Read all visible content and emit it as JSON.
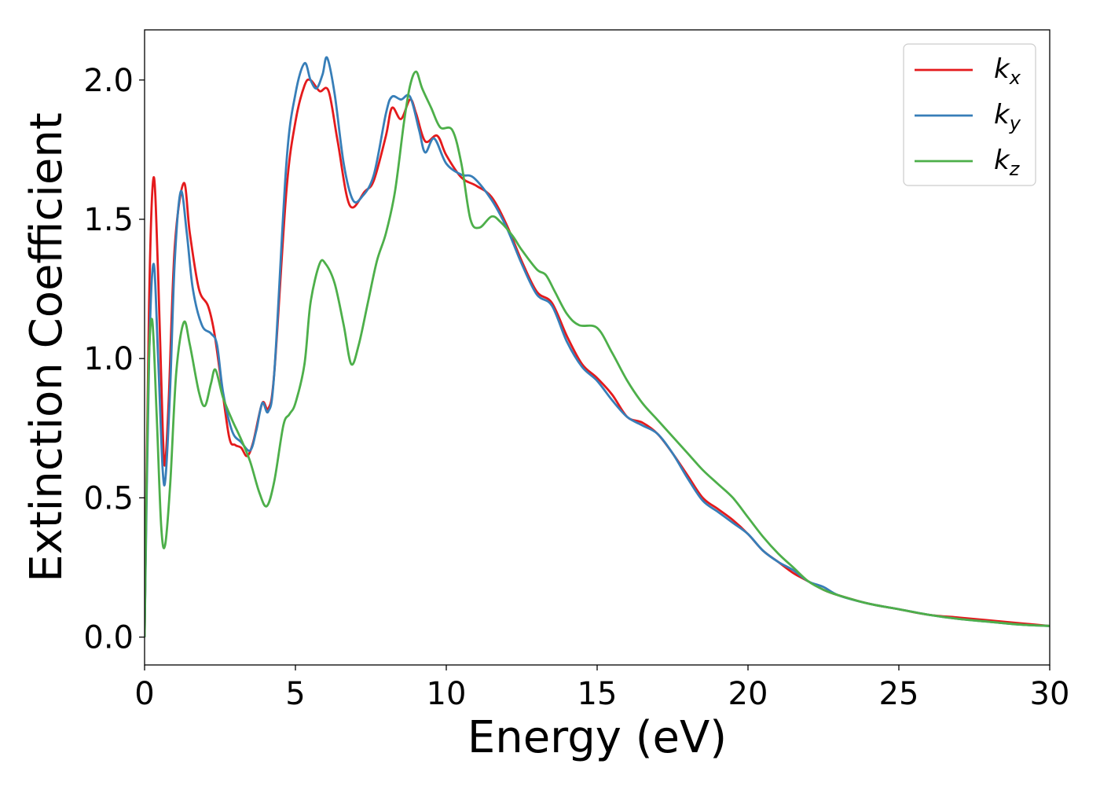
{
  "chart_data": {
    "type": "line",
    "title": "",
    "xlabel": "Energy (eV)",
    "ylabel": "Extinction Coefficient",
    "xlim": [
      0,
      30
    ],
    "ylim": [
      -0.1,
      2.18
    ],
    "xticks": [
      0,
      5,
      10,
      15,
      20,
      25,
      30
    ],
    "xtick_labels": [
      "0",
      "5",
      "10",
      "15",
      "20",
      "25",
      "30"
    ],
    "yticks": [
      0.0,
      0.5,
      1.0,
      1.5,
      2.0
    ],
    "ytick_labels": [
      "0.0",
      "0.5",
      "1.0",
      "1.5",
      "2.0"
    ],
    "grid": false,
    "legend_position": "top-right",
    "series": [
      {
        "name": "k_x",
        "label_main": "k",
        "label_sub": "x",
        "color": "#e41a1c",
        "points": [
          [
            0,
            0.0
          ],
          [
            0.15,
            1.2
          ],
          [
            0.3,
            1.65
          ],
          [
            0.45,
            1.3
          ],
          [
            0.6,
            0.75
          ],
          [
            0.68,
            0.62
          ],
          [
            0.8,
            0.85
          ],
          [
            1.0,
            1.4
          ],
          [
            1.3,
            1.63
          ],
          [
            1.5,
            1.45
          ],
          [
            1.8,
            1.25
          ],
          [
            2.1,
            1.19
          ],
          [
            2.3,
            1.1
          ],
          [
            2.5,
            0.95
          ],
          [
            2.8,
            0.72
          ],
          [
            3.0,
            0.69
          ],
          [
            3.2,
            0.68
          ],
          [
            3.4,
            0.65
          ],
          [
            3.6,
            0.7
          ],
          [
            3.9,
            0.84
          ],
          [
            4.1,
            0.82
          ],
          [
            4.3,
            0.95
          ],
          [
            4.7,
            1.6
          ],
          [
            5.0,
            1.85
          ],
          [
            5.3,
            1.98
          ],
          [
            5.5,
            2.0
          ],
          [
            5.8,
            1.96
          ],
          [
            6.1,
            1.96
          ],
          [
            6.4,
            1.78
          ],
          [
            6.8,
            1.55
          ],
          [
            7.3,
            1.6
          ],
          [
            7.6,
            1.64
          ],
          [
            8.0,
            1.8
          ],
          [
            8.2,
            1.9
          ],
          [
            8.5,
            1.86
          ],
          [
            8.8,
            1.93
          ],
          [
            9.0,
            1.88
          ],
          [
            9.3,
            1.78
          ],
          [
            9.7,
            1.8
          ],
          [
            10.0,
            1.73
          ],
          [
            10.5,
            1.65
          ],
          [
            11.0,
            1.62
          ],
          [
            11.5,
            1.58
          ],
          [
            12.0,
            1.48
          ],
          [
            12.5,
            1.35
          ],
          [
            13.0,
            1.24
          ],
          [
            13.5,
            1.2
          ],
          [
            14.0,
            1.08
          ],
          [
            14.5,
            0.98
          ],
          [
            15.0,
            0.93
          ],
          [
            15.5,
            0.87
          ],
          [
            16.0,
            0.79
          ],
          [
            16.5,
            0.77
          ],
          [
            17.0,
            0.73
          ],
          [
            17.5,
            0.66
          ],
          [
            18.0,
            0.58
          ],
          [
            18.5,
            0.5
          ],
          [
            19.0,
            0.46
          ],
          [
            19.5,
            0.42
          ],
          [
            20.0,
            0.37
          ],
          [
            20.5,
            0.31
          ],
          [
            21.0,
            0.27
          ],
          [
            21.5,
            0.23
          ],
          [
            22.0,
            0.2
          ],
          [
            22.5,
            0.17
          ],
          [
            23.0,
            0.15
          ],
          [
            24.0,
            0.12
          ],
          [
            25.0,
            0.1
          ],
          [
            26.0,
            0.08
          ],
          [
            27.0,
            0.07
          ],
          [
            28.0,
            0.06
          ],
          [
            29.0,
            0.05
          ],
          [
            30.0,
            0.04
          ]
        ]
      },
      {
        "name": "k_y",
        "label_main": "k",
        "label_sub": "y",
        "color": "#377eb8",
        "points": [
          [
            0,
            0.0
          ],
          [
            0.15,
            1.0
          ],
          [
            0.3,
            1.34
          ],
          [
            0.45,
            1.0
          ],
          [
            0.6,
            0.6
          ],
          [
            0.7,
            0.58
          ],
          [
            0.85,
            0.9
          ],
          [
            1.0,
            1.35
          ],
          [
            1.2,
            1.6
          ],
          [
            1.4,
            1.45
          ],
          [
            1.6,
            1.25
          ],
          [
            1.9,
            1.12
          ],
          [
            2.2,
            1.09
          ],
          [
            2.4,
            1.05
          ],
          [
            2.6,
            0.88
          ],
          [
            2.9,
            0.74
          ],
          [
            3.2,
            0.7
          ],
          [
            3.5,
            0.67
          ],
          [
            3.7,
            0.74
          ],
          [
            3.9,
            0.84
          ],
          [
            4.1,
            0.81
          ],
          [
            4.3,
            0.95
          ],
          [
            4.7,
            1.7
          ],
          [
            5.0,
            1.95
          ],
          [
            5.3,
            2.06
          ],
          [
            5.5,
            2.0
          ],
          [
            5.7,
            1.97
          ],
          [
            5.9,
            2.02
          ],
          [
            6.05,
            2.08
          ],
          [
            6.3,
            1.95
          ],
          [
            6.6,
            1.7
          ],
          [
            6.9,
            1.57
          ],
          [
            7.2,
            1.58
          ],
          [
            7.6,
            1.66
          ],
          [
            8.0,
            1.88
          ],
          [
            8.2,
            1.94
          ],
          [
            8.5,
            1.93
          ],
          [
            8.8,
            1.94
          ],
          [
            9.1,
            1.82
          ],
          [
            9.3,
            1.74
          ],
          [
            9.6,
            1.79
          ],
          [
            10.0,
            1.7
          ],
          [
            10.5,
            1.66
          ],
          [
            10.9,
            1.65
          ],
          [
            11.5,
            1.57
          ],
          [
            12.0,
            1.47
          ],
          [
            12.5,
            1.34
          ],
          [
            13.0,
            1.23
          ],
          [
            13.5,
            1.19
          ],
          [
            14.0,
            1.06
          ],
          [
            14.5,
            0.97
          ],
          [
            15.0,
            0.92
          ],
          [
            15.5,
            0.85
          ],
          [
            16.0,
            0.79
          ],
          [
            16.5,
            0.76
          ],
          [
            17.0,
            0.73
          ],
          [
            17.5,
            0.66
          ],
          [
            18.0,
            0.57
          ],
          [
            18.5,
            0.49
          ],
          [
            19.0,
            0.45
          ],
          [
            19.5,
            0.41
          ],
          [
            20.0,
            0.37
          ],
          [
            20.5,
            0.31
          ],
          [
            21.0,
            0.27
          ],
          [
            21.5,
            0.24
          ],
          [
            22.0,
            0.2
          ],
          [
            22.5,
            0.18
          ],
          [
            23.0,
            0.15
          ],
          [
            24.0,
            0.12
          ],
          [
            25.0,
            0.1
          ],
          [
            26.0,
            0.08
          ],
          [
            27.0,
            0.065
          ],
          [
            28.0,
            0.055
          ],
          [
            29.0,
            0.045
          ],
          [
            30.0,
            0.04
          ]
        ]
      },
      {
        "name": "k_z",
        "label_main": "k",
        "label_sub": "z",
        "color": "#4daf4a",
        "points": [
          [
            0,
            0.0
          ],
          [
            0.12,
            0.9
          ],
          [
            0.25,
            1.14
          ],
          [
            0.4,
            0.8
          ],
          [
            0.55,
            0.4
          ],
          [
            0.68,
            0.33
          ],
          [
            0.85,
            0.55
          ],
          [
            1.05,
            0.95
          ],
          [
            1.3,
            1.13
          ],
          [
            1.5,
            1.05
          ],
          [
            1.8,
            0.88
          ],
          [
            2.0,
            0.83
          ],
          [
            2.2,
            0.91
          ],
          [
            2.35,
            0.96
          ],
          [
            2.6,
            0.86
          ],
          [
            2.9,
            0.78
          ],
          [
            3.2,
            0.71
          ],
          [
            3.5,
            0.63
          ],
          [
            3.8,
            0.52
          ],
          [
            4.05,
            0.47
          ],
          [
            4.3,
            0.56
          ],
          [
            4.6,
            0.76
          ],
          [
            4.8,
            0.8
          ],
          [
            5.0,
            0.84
          ],
          [
            5.3,
            0.98
          ],
          [
            5.5,
            1.2
          ],
          [
            5.8,
            1.34
          ],
          [
            6.0,
            1.34
          ],
          [
            6.3,
            1.27
          ],
          [
            6.6,
            1.12
          ],
          [
            6.85,
            0.98
          ],
          [
            7.1,
            1.05
          ],
          [
            7.4,
            1.2
          ],
          [
            7.7,
            1.35
          ],
          [
            8.0,
            1.45
          ],
          [
            8.3,
            1.6
          ],
          [
            8.6,
            1.85
          ],
          [
            8.8,
            1.98
          ],
          [
            9.0,
            2.03
          ],
          [
            9.2,
            1.97
          ],
          [
            9.5,
            1.9
          ],
          [
            9.8,
            1.83
          ],
          [
            10.2,
            1.82
          ],
          [
            10.5,
            1.7
          ],
          [
            10.8,
            1.5
          ],
          [
            11.1,
            1.47
          ],
          [
            11.5,
            1.51
          ],
          [
            11.8,
            1.49
          ],
          [
            12.2,
            1.44
          ],
          [
            12.5,
            1.39
          ],
          [
            13.0,
            1.32
          ],
          [
            13.3,
            1.3
          ],
          [
            13.6,
            1.24
          ],
          [
            14.0,
            1.16
          ],
          [
            14.4,
            1.12
          ],
          [
            15.0,
            1.11
          ],
          [
            15.5,
            1.02
          ],
          [
            16.0,
            0.92
          ],
          [
            16.5,
            0.84
          ],
          [
            17.0,
            0.78
          ],
          [
            17.5,
            0.72
          ],
          [
            18.0,
            0.66
          ],
          [
            18.5,
            0.6
          ],
          [
            19.0,
            0.55
          ],
          [
            19.5,
            0.5
          ],
          [
            20.0,
            0.43
          ],
          [
            20.5,
            0.36
          ],
          [
            21.0,
            0.3
          ],
          [
            21.5,
            0.25
          ],
          [
            22.0,
            0.2
          ],
          [
            22.5,
            0.17
          ],
          [
            23.0,
            0.15
          ],
          [
            24.0,
            0.12
          ],
          [
            25.0,
            0.1
          ],
          [
            26.0,
            0.08
          ],
          [
            27.0,
            0.065
          ],
          [
            28.0,
            0.055
          ],
          [
            29.0,
            0.045
          ],
          [
            30.0,
            0.04
          ]
        ]
      }
    ]
  }
}
